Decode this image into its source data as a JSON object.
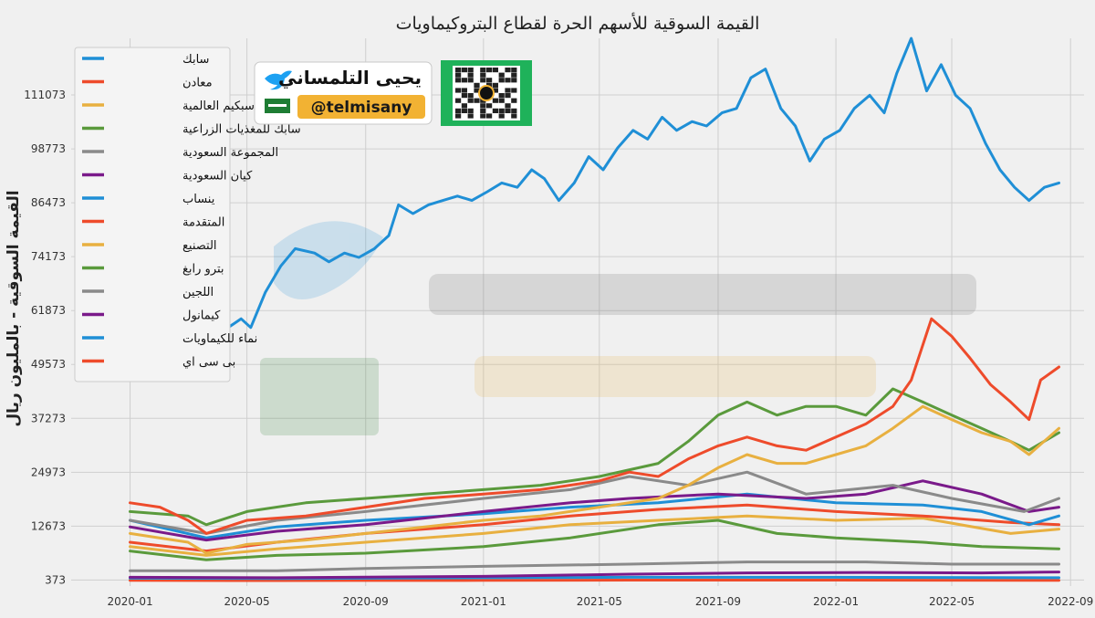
{
  "chart_data": {
    "type": "line",
    "title": "القيمة السوقية للأسهم الحرة لقطاع البتروكيماويات",
    "ylabel": "القيمة السوقية - بالمليون ريال",
    "xlabel": "",
    "x_ticks": [
      "2020-01",
      "2020-05",
      "2020-09",
      "2021-01",
      "2021-05",
      "2021-09",
      "2022-01",
      "2022-05",
      "2022-09"
    ],
    "y_ticks": [
      373,
      12673,
      24973,
      37273,
      49573,
      61873,
      74173,
      86473,
      98773,
      111073
    ],
    "xlim": [
      "2019-11-01",
      "2022-09-15"
    ],
    "ylim": [
      -1000,
      124000
    ],
    "grid": true,
    "legend_position": "top-left",
    "series": [
      {
        "name": "سابك",
        "color": "#1f8fd6",
        "width": 3,
        "points": [
          [
            "2020-01-01",
            77000
          ],
          [
            "2020-01-20",
            75000
          ],
          [
            "2020-02-10",
            73000
          ],
          [
            "2020-02-25",
            70000
          ],
          [
            "2020-03-10",
            57000
          ],
          [
            "2020-03-22",
            51000
          ],
          [
            "2020-04-05",
            57000
          ],
          [
            "2020-04-25",
            60000
          ],
          [
            "2020-05-05",
            58000
          ],
          [
            "2020-05-20",
            66000
          ],
          [
            "2020-06-05",
            72000
          ],
          [
            "2020-06-20",
            76000
          ],
          [
            "2020-07-10",
            75000
          ],
          [
            "2020-07-25",
            73000
          ],
          [
            "2020-08-10",
            75000
          ],
          [
            "2020-08-25",
            74000
          ],
          [
            "2020-09-10",
            76000
          ],
          [
            "2020-09-25",
            79000
          ],
          [
            "2020-10-05",
            86000
          ],
          [
            "2020-10-20",
            84000
          ],
          [
            "2020-11-05",
            86000
          ],
          [
            "2020-11-20",
            87000
          ],
          [
            "2020-12-05",
            88000
          ],
          [
            "2020-12-20",
            87000
          ],
          [
            "2021-01-05",
            89000
          ],
          [
            "2021-01-20",
            91000
          ],
          [
            "2021-02-05",
            90000
          ],
          [
            "2021-02-20",
            94000
          ],
          [
            "2021-03-05",
            92000
          ],
          [
            "2021-03-20",
            87000
          ],
          [
            "2021-04-05",
            91000
          ],
          [
            "2021-04-20",
            97000
          ],
          [
            "2021-05-05",
            94000
          ],
          [
            "2021-05-20",
            99000
          ],
          [
            "2021-06-05",
            103000
          ],
          [
            "2021-06-20",
            101000
          ],
          [
            "2021-07-05",
            106000
          ],
          [
            "2021-07-20",
            103000
          ],
          [
            "2021-08-05",
            105000
          ],
          [
            "2021-08-20",
            104000
          ],
          [
            "2021-09-05",
            107000
          ],
          [
            "2021-09-20",
            108000
          ],
          [
            "2021-10-05",
            115000
          ],
          [
            "2021-10-20",
            117000
          ],
          [
            "2021-11-05",
            108000
          ],
          [
            "2021-11-20",
            104000
          ],
          [
            "2021-12-05",
            96000
          ],
          [
            "2021-12-20",
            101000
          ],
          [
            "2022-01-05",
            103000
          ],
          [
            "2022-01-20",
            108000
          ],
          [
            "2022-02-05",
            111000
          ],
          [
            "2022-02-20",
            107000
          ],
          [
            "2022-03-05",
            116000
          ],
          [
            "2022-03-20",
            124000
          ],
          [
            "2022-04-05",
            112000
          ],
          [
            "2022-04-20",
            118000
          ],
          [
            "2022-05-05",
            111000
          ],
          [
            "2022-05-20",
            108000
          ],
          [
            "2022-06-05",
            100000
          ],
          [
            "2022-06-20",
            94000
          ],
          [
            "2022-07-05",
            90000
          ],
          [
            "2022-07-20",
            87000
          ],
          [
            "2022-08-05",
            90000
          ],
          [
            "2022-08-20",
            91000
          ]
        ]
      },
      {
        "name": "معادن",
        "color": "#ee4b2b",
        "width": 3,
        "points": [
          [
            "2020-01-01",
            18000
          ],
          [
            "2020-02-01",
            17000
          ],
          [
            "2020-03-01",
            14000
          ],
          [
            "2020-03-20",
            11000
          ],
          [
            "2020-05-01",
            14000
          ],
          [
            "2020-07-01",
            15000
          ],
          [
            "2020-09-01",
            17000
          ],
          [
            "2020-11-01",
            19000
          ],
          [
            "2021-01-01",
            20000
          ],
          [
            "2021-03-01",
            21000
          ],
          [
            "2021-05-01",
            23000
          ],
          [
            "2021-06-01",
            25000
          ],
          [
            "2021-07-01",
            24000
          ],
          [
            "2021-08-01",
            28000
          ],
          [
            "2021-09-01",
            31000
          ],
          [
            "2021-10-01",
            33000
          ],
          [
            "2021-11-01",
            31000
          ],
          [
            "2021-12-01",
            30000
          ],
          [
            "2022-01-01",
            33000
          ],
          [
            "2022-02-01",
            36000
          ],
          [
            "2022-03-01",
            40000
          ],
          [
            "2022-03-20",
            46000
          ],
          [
            "2022-04-10",
            60000
          ],
          [
            "2022-05-01",
            56000
          ],
          [
            "2022-05-20",
            51000
          ],
          [
            "2022-06-10",
            45000
          ],
          [
            "2022-07-01",
            41000
          ],
          [
            "2022-07-20",
            37000
          ],
          [
            "2022-08-01",
            46000
          ],
          [
            "2022-08-20",
            49000
          ]
        ]
      },
      {
        "name": "سبكيم العالمية",
        "color": "#e8b040",
        "width": 3,
        "points": [
          [
            "2020-01-01",
            11000
          ],
          [
            "2020-03-01",
            9000
          ],
          [
            "2020-03-20",
            6500
          ],
          [
            "2020-05-01",
            8500
          ],
          [
            "2020-07-01",
            9500
          ],
          [
            "2020-09-01",
            11000
          ],
          [
            "2020-11-01",
            12500
          ],
          [
            "2021-01-01",
            14000
          ],
          [
            "2021-03-01",
            15000
          ],
          [
            "2021-05-01",
            17000
          ],
          [
            "2021-07-01",
            19000
          ],
          [
            "2021-08-01",
            22000
          ],
          [
            "2021-09-01",
            26000
          ],
          [
            "2021-10-01",
            29000
          ],
          [
            "2021-11-01",
            27000
          ],
          [
            "2021-12-01",
            27000
          ],
          [
            "2022-01-01",
            29000
          ],
          [
            "2022-02-01",
            31000
          ],
          [
            "2022-03-01",
            35000
          ],
          [
            "2022-04-01",
            40000
          ],
          [
            "2022-05-01",
            37000
          ],
          [
            "2022-06-01",
            34000
          ],
          [
            "2022-07-01",
            32000
          ],
          [
            "2022-07-20",
            29000
          ],
          [
            "2022-08-20",
            35000
          ]
        ]
      },
      {
        "name": "سابك للمغذيات الزراعية",
        "color": "#5a9a3c",
        "width": 3,
        "points": [
          [
            "2020-01-01",
            16000
          ],
          [
            "2020-03-01",
            15000
          ],
          [
            "2020-03-20",
            13000
          ],
          [
            "2020-05-01",
            16000
          ],
          [
            "2020-07-01",
            18000
          ],
          [
            "2020-09-01",
            19000
          ],
          [
            "2020-11-01",
            20000
          ],
          [
            "2021-01-01",
            21000
          ],
          [
            "2021-03-01",
            22000
          ],
          [
            "2021-05-01",
            24000
          ],
          [
            "2021-07-01",
            27000
          ],
          [
            "2021-08-01",
            32000
          ],
          [
            "2021-09-01",
            38000
          ],
          [
            "2021-10-01",
            41000
          ],
          [
            "2021-11-01",
            38000
          ],
          [
            "2021-12-01",
            40000
          ],
          [
            "2022-01-01",
            40000
          ],
          [
            "2022-02-01",
            38000
          ],
          [
            "2022-03-01",
            44000
          ],
          [
            "2022-04-01",
            41000
          ],
          [
            "2022-05-01",
            38000
          ],
          [
            "2022-06-01",
            35000
          ],
          [
            "2022-07-01",
            32000
          ],
          [
            "2022-07-20",
            30000
          ],
          [
            "2022-08-20",
            34000
          ]
        ]
      },
      {
        "name": "المجموعة السعودية",
        "color": "#8a8a8a",
        "width": 3,
        "points": [
          [
            "2020-01-01",
            14000
          ],
          [
            "2020-03-20",
            11000
          ],
          [
            "2020-06-01",
            14000
          ],
          [
            "2020-09-01",
            16000
          ],
          [
            "2021-01-01",
            19000
          ],
          [
            "2021-04-01",
            21000
          ],
          [
            "2021-06-01",
            24000
          ],
          [
            "2021-08-01",
            22000
          ],
          [
            "2021-10-01",
            25000
          ],
          [
            "2021-12-01",
            20000
          ],
          [
            "2022-03-01",
            22000
          ],
          [
            "2022-05-01",
            19000
          ],
          [
            "2022-07-15",
            16000
          ],
          [
            "2022-08-20",
            19000
          ]
        ]
      },
      {
        "name": "كيان السعودية",
        "color": "#7a1a8a",
        "width": 3,
        "points": [
          [
            "2020-01-01",
            12500
          ],
          [
            "2020-03-20",
            9500
          ],
          [
            "2020-06-01",
            11500
          ],
          [
            "2020-09-01",
            13000
          ],
          [
            "2021-01-01",
            16000
          ],
          [
            "2021-04-01",
            18000
          ],
          [
            "2021-06-01",
            19000
          ],
          [
            "2021-09-01",
            20000
          ],
          [
            "2021-12-01",
            19000
          ],
          [
            "2022-02-01",
            20000
          ],
          [
            "2022-04-01",
            23000
          ],
          [
            "2022-06-01",
            20000
          ],
          [
            "2022-07-20",
            16000
          ],
          [
            "2022-08-20",
            17000
          ]
        ]
      },
      {
        "name": "ينساب",
        "color": "#1f8fd6",
        "width": 3,
        "points": [
          [
            "2020-01-01",
            14000
          ],
          [
            "2020-03-20",
            10000
          ],
          [
            "2020-06-01",
            12500
          ],
          [
            "2020-09-01",
            14000
          ],
          [
            "2021-01-01",
            15500
          ],
          [
            "2021-04-01",
            17000
          ],
          [
            "2021-07-01",
            18000
          ],
          [
            "2021-10-01",
            20000
          ],
          [
            "2022-01-01",
            18000
          ],
          [
            "2022-04-01",
            17500
          ],
          [
            "2022-06-01",
            16000
          ],
          [
            "2022-07-20",
            13000
          ],
          [
            "2022-08-20",
            15000
          ]
        ]
      },
      {
        "name": "المتقدمة",
        "color": "#ee4b2b",
        "width": 3,
        "points": [
          [
            "2020-01-01",
            9000
          ],
          [
            "2020-03-20",
            7000
          ],
          [
            "2020-06-01",
            9000
          ],
          [
            "2020-09-01",
            11000
          ],
          [
            "2021-01-01",
            13000
          ],
          [
            "2021-04-01",
            15000
          ],
          [
            "2021-07-01",
            16500
          ],
          [
            "2021-10-01",
            17500
          ],
          [
            "2022-01-01",
            16000
          ],
          [
            "2022-04-01",
            15000
          ],
          [
            "2022-07-01",
            13500
          ],
          [
            "2022-08-20",
            13000
          ]
        ]
      },
      {
        "name": "التصنيع",
        "color": "#e8b040",
        "width": 3,
        "points": [
          [
            "2020-01-01",
            8000
          ],
          [
            "2020-03-20",
            6000
          ],
          [
            "2020-06-01",
            7500
          ],
          [
            "2020-09-01",
            9000
          ],
          [
            "2021-01-01",
            11000
          ],
          [
            "2021-04-01",
            13000
          ],
          [
            "2021-07-01",
            14000
          ],
          [
            "2021-10-01",
            15000
          ],
          [
            "2022-01-01",
            14000
          ],
          [
            "2022-04-01",
            14500
          ],
          [
            "2022-07-01",
            11000
          ],
          [
            "2022-08-20",
            12000
          ]
        ]
      },
      {
        "name": "بترو رابغ",
        "color": "#5a9a3c",
        "width": 3,
        "points": [
          [
            "2020-01-01",
            7000
          ],
          [
            "2020-03-20",
            5000
          ],
          [
            "2020-06-01",
            6000
          ],
          [
            "2020-09-01",
            6500
          ],
          [
            "2021-01-01",
            8000
          ],
          [
            "2021-04-01",
            10000
          ],
          [
            "2021-07-01",
            13000
          ],
          [
            "2021-09-01",
            14000
          ],
          [
            "2021-11-01",
            11000
          ],
          [
            "2022-01-01",
            10000
          ],
          [
            "2022-04-01",
            9000
          ],
          [
            "2022-06-01",
            8000
          ],
          [
            "2022-08-20",
            7500
          ]
        ]
      },
      {
        "name": "اللجين",
        "color": "#8a8a8a",
        "width": 3,
        "points": [
          [
            "2020-01-01",
            2500
          ],
          [
            "2020-06-01",
            2500
          ],
          [
            "2020-09-01",
            3000
          ],
          [
            "2021-01-01",
            3500
          ],
          [
            "2021-06-01",
            4000
          ],
          [
            "2021-10-01",
            4500
          ],
          [
            "2022-02-01",
            4500
          ],
          [
            "2022-05-01",
            4000
          ],
          [
            "2022-08-20",
            4000
          ]
        ]
      },
      {
        "name": "كيمانول",
        "color": "#7a1a8a",
        "width": 3,
        "points": [
          [
            "2020-01-01",
            1000
          ],
          [
            "2020-06-01",
            900
          ],
          [
            "2021-01-01",
            1200
          ],
          [
            "2021-06-01",
            1700
          ],
          [
            "2021-10-01",
            2000
          ],
          [
            "2022-02-01",
            2100
          ],
          [
            "2022-06-01",
            2000
          ],
          [
            "2022-08-20",
            2200
          ]
        ]
      },
      {
        "name": "نماء للكيماويات",
        "color": "#1f8fd6",
        "width": 3,
        "points": [
          [
            "2020-01-01",
            800
          ],
          [
            "2020-06-01",
            700
          ],
          [
            "2021-01-01",
            900
          ],
          [
            "2021-06-01",
            1000
          ],
          [
            "2022-01-01",
            1000
          ],
          [
            "2022-08-20",
            900
          ]
        ]
      },
      {
        "name": "بى سى اي",
        "color": "#ee4b2b",
        "width": 3,
        "points": [
          [
            "2020-01-01",
            300
          ],
          [
            "2020-06-01",
            250
          ],
          [
            "2021-01-01",
            300
          ],
          [
            "2021-06-01",
            350
          ],
          [
            "2022-01-01",
            350
          ],
          [
            "2022-08-20",
            300
          ]
        ]
      }
    ]
  },
  "badge": {
    "name": "يحيى التلمساني",
    "handle": "@telmisany"
  }
}
